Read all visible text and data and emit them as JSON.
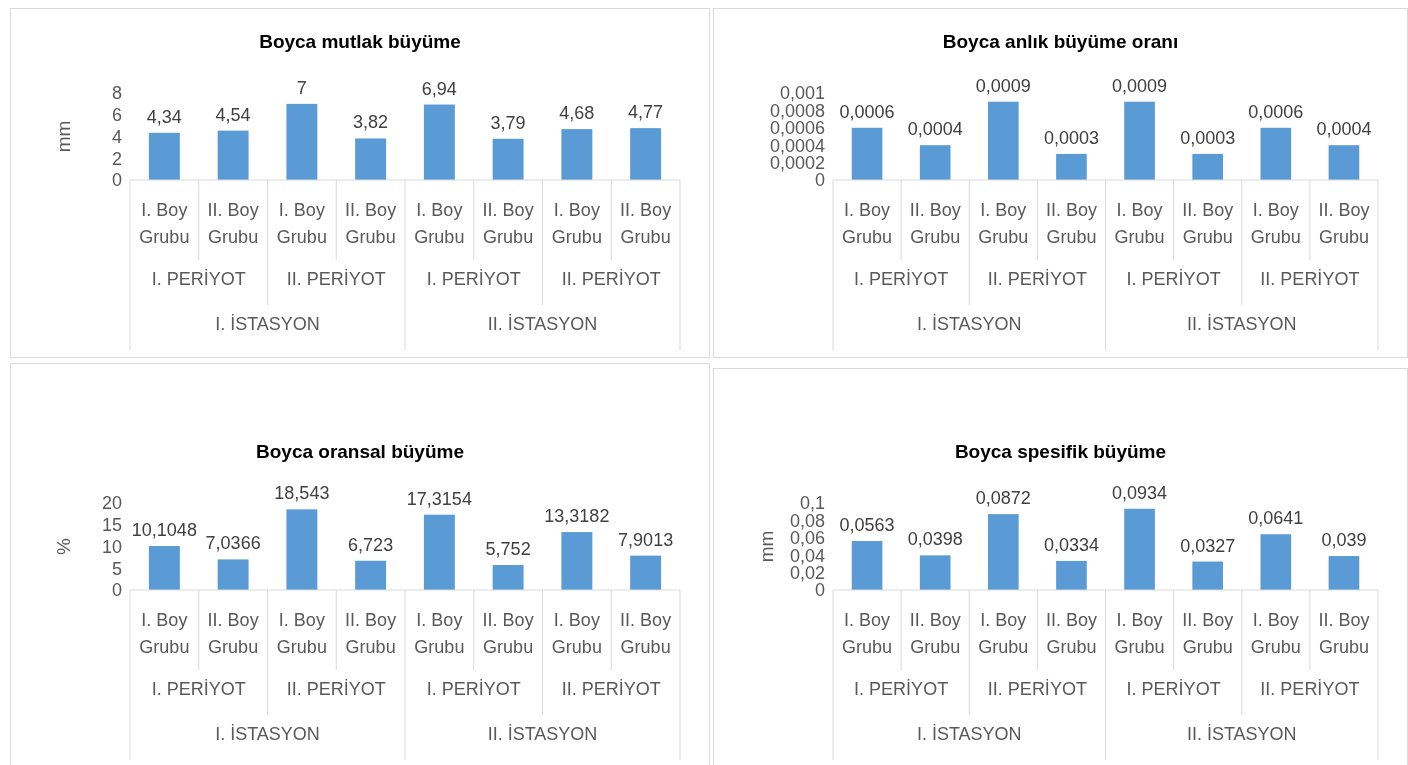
{
  "chart_data": [
    {
      "type": "bar",
      "title": "Boyca mutlak büyüme",
      "ylabel": "mm",
      "categories": [
        "I. Boy Grubu",
        "II. Boy Grubu",
        "I. Boy Grubu",
        "II. Boy Grubu",
        "I. Boy Grubu",
        "II. Boy Grubu",
        "I. Boy Grubu",
        "II. Boy Grubu"
      ],
      "values": [
        4.34,
        4.54,
        7,
        3.82,
        6.94,
        3.79,
        4.68,
        4.77
      ],
      "value_labels": [
        "4,34",
        "4,54",
        "7",
        "3,82",
        "6,94",
        "3,79",
        "4,68",
        "4,77"
      ],
      "color": "#5b9bd5",
      "ylim": [
        0,
        8
      ],
      "yticks": [
        0,
        2,
        4,
        6,
        8
      ],
      "annotations": [
        "I. PERİYOT",
        "II. PERİYOT",
        "I. PERİYOT",
        "II. PERİYOT",
        "I. İSTASYON",
        "II. İSTASYON"
      ]
    },
    {
      "type": "bar",
      "title": "Boyca anlık büyüme oranı",
      "categories": [
        "I. Boy Grubu",
        "II. Boy Grubu",
        "I. Boy Grubu",
        "II. Boy Grubu",
        "I. Boy Grubu",
        "II. Boy Grubu",
        "I. Boy Grubu",
        "II. Boy Grubu"
      ],
      "values": [
        0.0006,
        0.0004,
        0.0009,
        0.0003,
        0.0009,
        0.0003,
        0.0006,
        0.0004
      ],
      "value_labels": [
        "0,0006",
        "0,0004",
        "0,0009",
        "0,0003",
        "0,0009",
        "0,0003",
        "0,0006",
        "0,0004"
      ],
      "color": "#5b9bd5",
      "ylim": [
        0,
        0.001
      ],
      "yticks": [
        0,
        {
          "value": 0.0002,
          "label": "0,0002"
        },
        {
          "value": 0.0004,
          "label": "0,0004"
        },
        {
          "value": 0.0006,
          "label": "0,0006"
        },
        {
          "value": 0.0008,
          "label": "0,0008"
        },
        {
          "value": 0.001,
          "label": "0,001"
        }
      ],
      "annotations": [
        "I. PERİYOT",
        "II. PERİYOT",
        "I. PERİYOT",
        "II. PERİYOT",
        "I. İSTASYON",
        "II. İSTASYON"
      ]
    },
    {
      "type": "bar",
      "title": "Boyca oransal büyüme",
      "ylabel": "%",
      "categories": [
        "I. Boy Grubu",
        "II. Boy Grubu",
        "I. Boy Grubu",
        "II. Boy Grubu",
        "I. Boy Grubu",
        "II. Boy Grubu",
        "I. Boy Grubu",
        "II. Boy Grubu"
      ],
      "values": [
        10.1048,
        7.0366,
        18.543,
        6.723,
        17.3154,
        5.752,
        13.3182,
        7.9013
      ],
      "value_labels": [
        "10,1048",
        "7,0366",
        "18,543",
        "6,723",
        "17,3154",
        "5,752",
        "13,3182",
        "7,9013"
      ],
      "color": "#5b9bd5",
      "ylim": [
        0,
        20
      ],
      "yticks": [
        0,
        5,
        10,
        15,
        20
      ],
      "annotations": [
        "I. PERİYOT",
        "II. PERİYOT",
        "I. PERİYOT",
        "II. PERİYOT",
        "I. İSTASYON",
        "II. İSTASYON"
      ]
    },
    {
      "type": "bar",
      "title": "Boyca spesifik büyüme",
      "ylabel": "mm",
      "categories": [
        "I. Boy Grubu",
        "II. Boy Grubu",
        "I. Boy Grubu",
        "II. Boy Grubu",
        "I. Boy Grubu",
        "II. Boy Grubu",
        "I. Boy Grubu",
        "II. Boy Grubu"
      ],
      "values": [
        0.0563,
        0.0398,
        0.0872,
        0.0334,
        0.0934,
        0.0327,
        0.0641,
        0.039
      ],
      "value_labels": [
        "0,0563",
        "0,0398",
        "0,0872",
        "0,0334",
        "0,0934",
        "0,0327",
        "0,0641",
        "0,039"
      ],
      "color": "#5b9bd5",
      "ylim": [
        0,
        0.1
      ],
      "yticks": [
        0,
        {
          "value": 0.02,
          "label": "0,02"
        },
        {
          "value": 0.04,
          "label": "0,04"
        },
        {
          "value": 0.06,
          "label": "0,06"
        },
        {
          "value": 0.08,
          "label": "0,08"
        },
        {
          "value": 0.1,
          "label": "0,1"
        }
      ],
      "annotations": [
        "I. PERİYOT",
        "II. PERİYOT",
        "I. PERİYOT",
        "II. PERİYOT",
        "I. İSTASYON",
        "II. İSTASYON"
      ]
    }
  ]
}
